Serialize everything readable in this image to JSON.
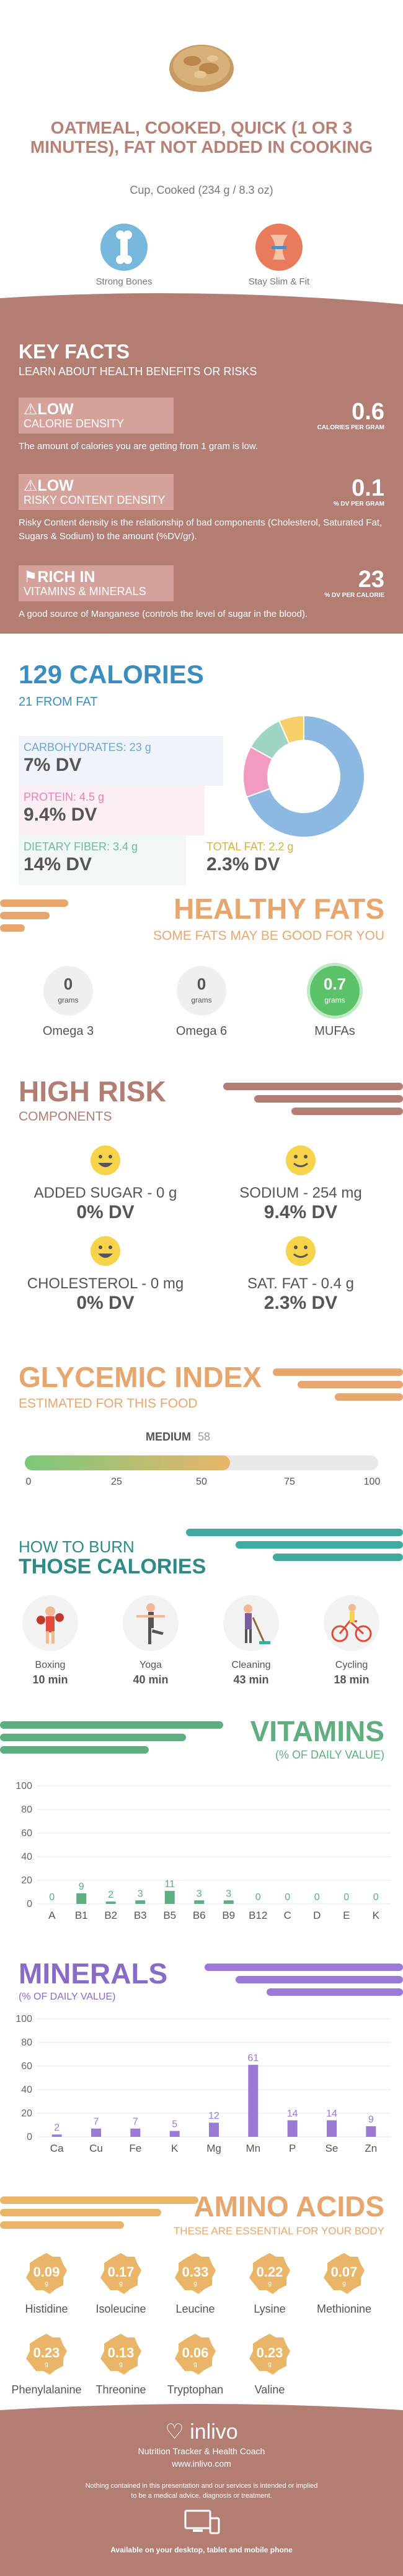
{
  "header": {
    "title": "OATMEAL, COOKED, QUICK (1 OR 3 MINUTES), FAT NOT ADDED IN COOKING",
    "serving": "Cup, Cooked (234 g / 8.3 oz)",
    "badges": [
      {
        "label": "Strong Bones",
        "icon": "bone-icon",
        "color": "#79b8dd"
      },
      {
        "label": "Stay Slim & Fit",
        "icon": "waist-icon",
        "color": "#e87b5c"
      }
    ]
  },
  "key_facts": {
    "title": "KEY FACTS",
    "subtitle": "LEARN ABOUT HEALTH BENEFITS OR RISKS",
    "items": [
      {
        "level": "LOW",
        "name": "CALORIE DENSITY",
        "value": "0.6",
        "unit": "CALORIES PER GRAM",
        "desc": "The amount of calories you are getting from 1 gram is low."
      },
      {
        "level": "LOW",
        "name": "RISKY CONTENT DENSITY",
        "value": "0.1",
        "unit": "% DV PER GRAM",
        "desc": "Risky Content density is the relationship of bad components (Cholesterol, Saturated Fat, Sugars & Sodium) to the amount (%DV/gr)."
      },
      {
        "level": "RICH IN",
        "name": "VITAMINS & MINERALS",
        "value": "23",
        "unit": "% DV PER CALORIE",
        "desc": "A good source of Manganese (controls the level of sugar in the blood)."
      }
    ]
  },
  "calories": {
    "title": "129 CALORIES",
    "from_fat": "21 FROM FAT",
    "nutrients": [
      {
        "label": "CARBOHYDRATES: 23 g",
        "pct": "7% DV",
        "color": "#8db8e0"
      },
      {
        "label": "PROTEIN: 4.5 g",
        "pct": "9.4% DV",
        "color": "#f29ac0"
      },
      {
        "label": "DIETARY FIBER: 3.4 g",
        "pct": "14% DV",
        "color": "#9fd3c4"
      },
      {
        "label": "TOTAL FAT: 2.2 g",
        "pct": "2.3% DV",
        "color": "#f5d06a"
      }
    ],
    "donut_grams": [
      23,
      4.5,
      3.4,
      2.2
    ]
  },
  "healthy_fats": {
    "title": "HEALTHY FATS",
    "subtitle": "SOME FATS MAY BE GOOD FOR YOU",
    "items": [
      {
        "value": "0",
        "unit": "grams",
        "label": "Omega 3"
      },
      {
        "value": "0",
        "unit": "grams",
        "label": "Omega 6"
      },
      {
        "value": "0.7",
        "unit": "grams",
        "label": "MUFAs"
      }
    ]
  },
  "high_risk": {
    "title": "HIGH RISK",
    "subtitle": "COMPONENTS",
    "items": [
      {
        "label": "ADDED SUGAR - 0 g",
        "pct": "0% DV"
      },
      {
        "label": "SODIUM - 254 mg",
        "pct": "9.4% DV"
      },
      {
        "label": "CHOLESTEROL - 0 mg",
        "pct": "0% DV"
      },
      {
        "label": "SAT. FAT - 0.4 g",
        "pct": "2.3% DV"
      }
    ]
  },
  "glycemic": {
    "title": "GLYCEMIC INDEX",
    "subtitle": "ESTIMATED FOR THIS FOOD",
    "level": "MEDIUM",
    "value": 58,
    "ticks": [
      "0",
      "25",
      "50",
      "75",
      "100"
    ]
  },
  "burn": {
    "title1": "HOW TO BURN",
    "title2": "THOSE CALORIES",
    "activities": [
      {
        "name": "Boxing",
        "time": "10 min"
      },
      {
        "name": "Yoga",
        "time": "40 min"
      },
      {
        "name": "Cleaning",
        "time": "43 min"
      },
      {
        "name": "Cycling",
        "time": "18 min"
      }
    ]
  },
  "vitamins": {
    "title": "VITAMINS",
    "subtitle": "(% OF DAILY VALUE)",
    "color": "#5fae7f",
    "chart_data": {
      "type": "bar",
      "categories": [
        "A",
        "B1",
        "B2",
        "B3",
        "B5",
        "B6",
        "B9",
        "B12",
        "C",
        "D",
        "E",
        "K"
      ],
      "values": [
        0,
        9,
        2,
        3,
        11,
        3,
        3,
        0,
        0,
        0,
        0,
        0
      ],
      "ylim": [
        0,
        100
      ],
      "yticks": [
        "0",
        "20",
        "40",
        "60",
        "80",
        "100"
      ]
    }
  },
  "minerals": {
    "title": "MINERALS",
    "subtitle": "(% OF DAILY VALUE)",
    "color": "#9b7ad6",
    "chart_data": {
      "type": "bar",
      "categories": [
        "Ca",
        "Cu",
        "Fe",
        "K",
        "Mg",
        "Mn",
        "P",
        "Se",
        "Zn"
      ],
      "values": [
        2,
        7,
        7,
        5,
        12,
        61,
        14,
        14,
        9
      ],
      "ylim": [
        0,
        100
      ],
      "yticks": [
        "0",
        "20",
        "40",
        "60",
        "80",
        "100"
      ]
    }
  },
  "amino": {
    "title": "AMINO ACIDS",
    "subtitle": "THESE ARE ESSENTIAL FOR YOUR BODY",
    "unit": "g",
    "items": [
      {
        "value": "0.09",
        "label": "Histidine"
      },
      {
        "value": "0.17",
        "label": "Isoleucine"
      },
      {
        "value": "0.33",
        "label": "Leucine"
      },
      {
        "value": "0.22",
        "label": "Lysine"
      },
      {
        "value": "0.07",
        "label": "Methionine"
      },
      {
        "value": "0.23",
        "label": "Phenylalanine"
      },
      {
        "value": "0.13",
        "label": "Threonine"
      },
      {
        "value": "0.06",
        "label": "Tryptophan"
      },
      {
        "value": "0.23",
        "label": "Valine"
      }
    ]
  },
  "footer": {
    "brand": "inlivo",
    "tagline": "Nutrition Tracker & Health Coach",
    "url": "www.inlivo.com",
    "disclaimer1": "Nothing contained in this presentation and our services is intended or implied",
    "disclaimer2": "to be a medical advice, diagnosis or treatment.",
    "available": "Available on your desktop, tablet and mobile phone"
  }
}
